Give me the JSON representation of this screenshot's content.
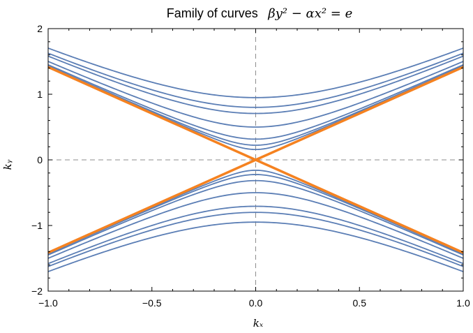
{
  "chart_data": {
    "type": "line",
    "title": {
      "text": "Family of curves",
      "formula": "βy² − αx² = e"
    },
    "xlabel": "kₓ",
    "ylabel": "kᵧ",
    "xlim": [
      -1.0,
      1.0
    ],
    "ylim": [
      -2,
      2
    ],
    "xticks": [
      -1.0,
      -0.5,
      0.0,
      0.5,
      1.0
    ],
    "xtick_labels": [
      "−1.0",
      "−0.5",
      "0.0",
      "0.5",
      "1.0"
    ],
    "yticks": [
      -2,
      -1,
      0,
      1,
      2
    ],
    "ytick_labels": [
      "−2",
      "−1",
      "0",
      "1",
      "2"
    ],
    "grid": false,
    "reference_lines": {
      "x0": true,
      "y0": true,
      "style": "dashed"
    },
    "family": {
      "curve": "beta*y^2 - alpha*x^2 = e",
      "beta": 1,
      "alpha": 2,
      "e_values": [
        0.025,
        0.05,
        0.1,
        0.25,
        0.5,
        0.64,
        0.9
      ],
      "branches": [
        "upper",
        "lower"
      ],
      "color": "#5b7eb5"
    },
    "asymptotes": {
      "color": "#f58220",
      "slope": 1.414
    },
    "colors": {
      "curve": "#5b7eb5",
      "asymptote": "#f58220",
      "frame": "#000000",
      "reference": "#8c8c8c"
    }
  }
}
